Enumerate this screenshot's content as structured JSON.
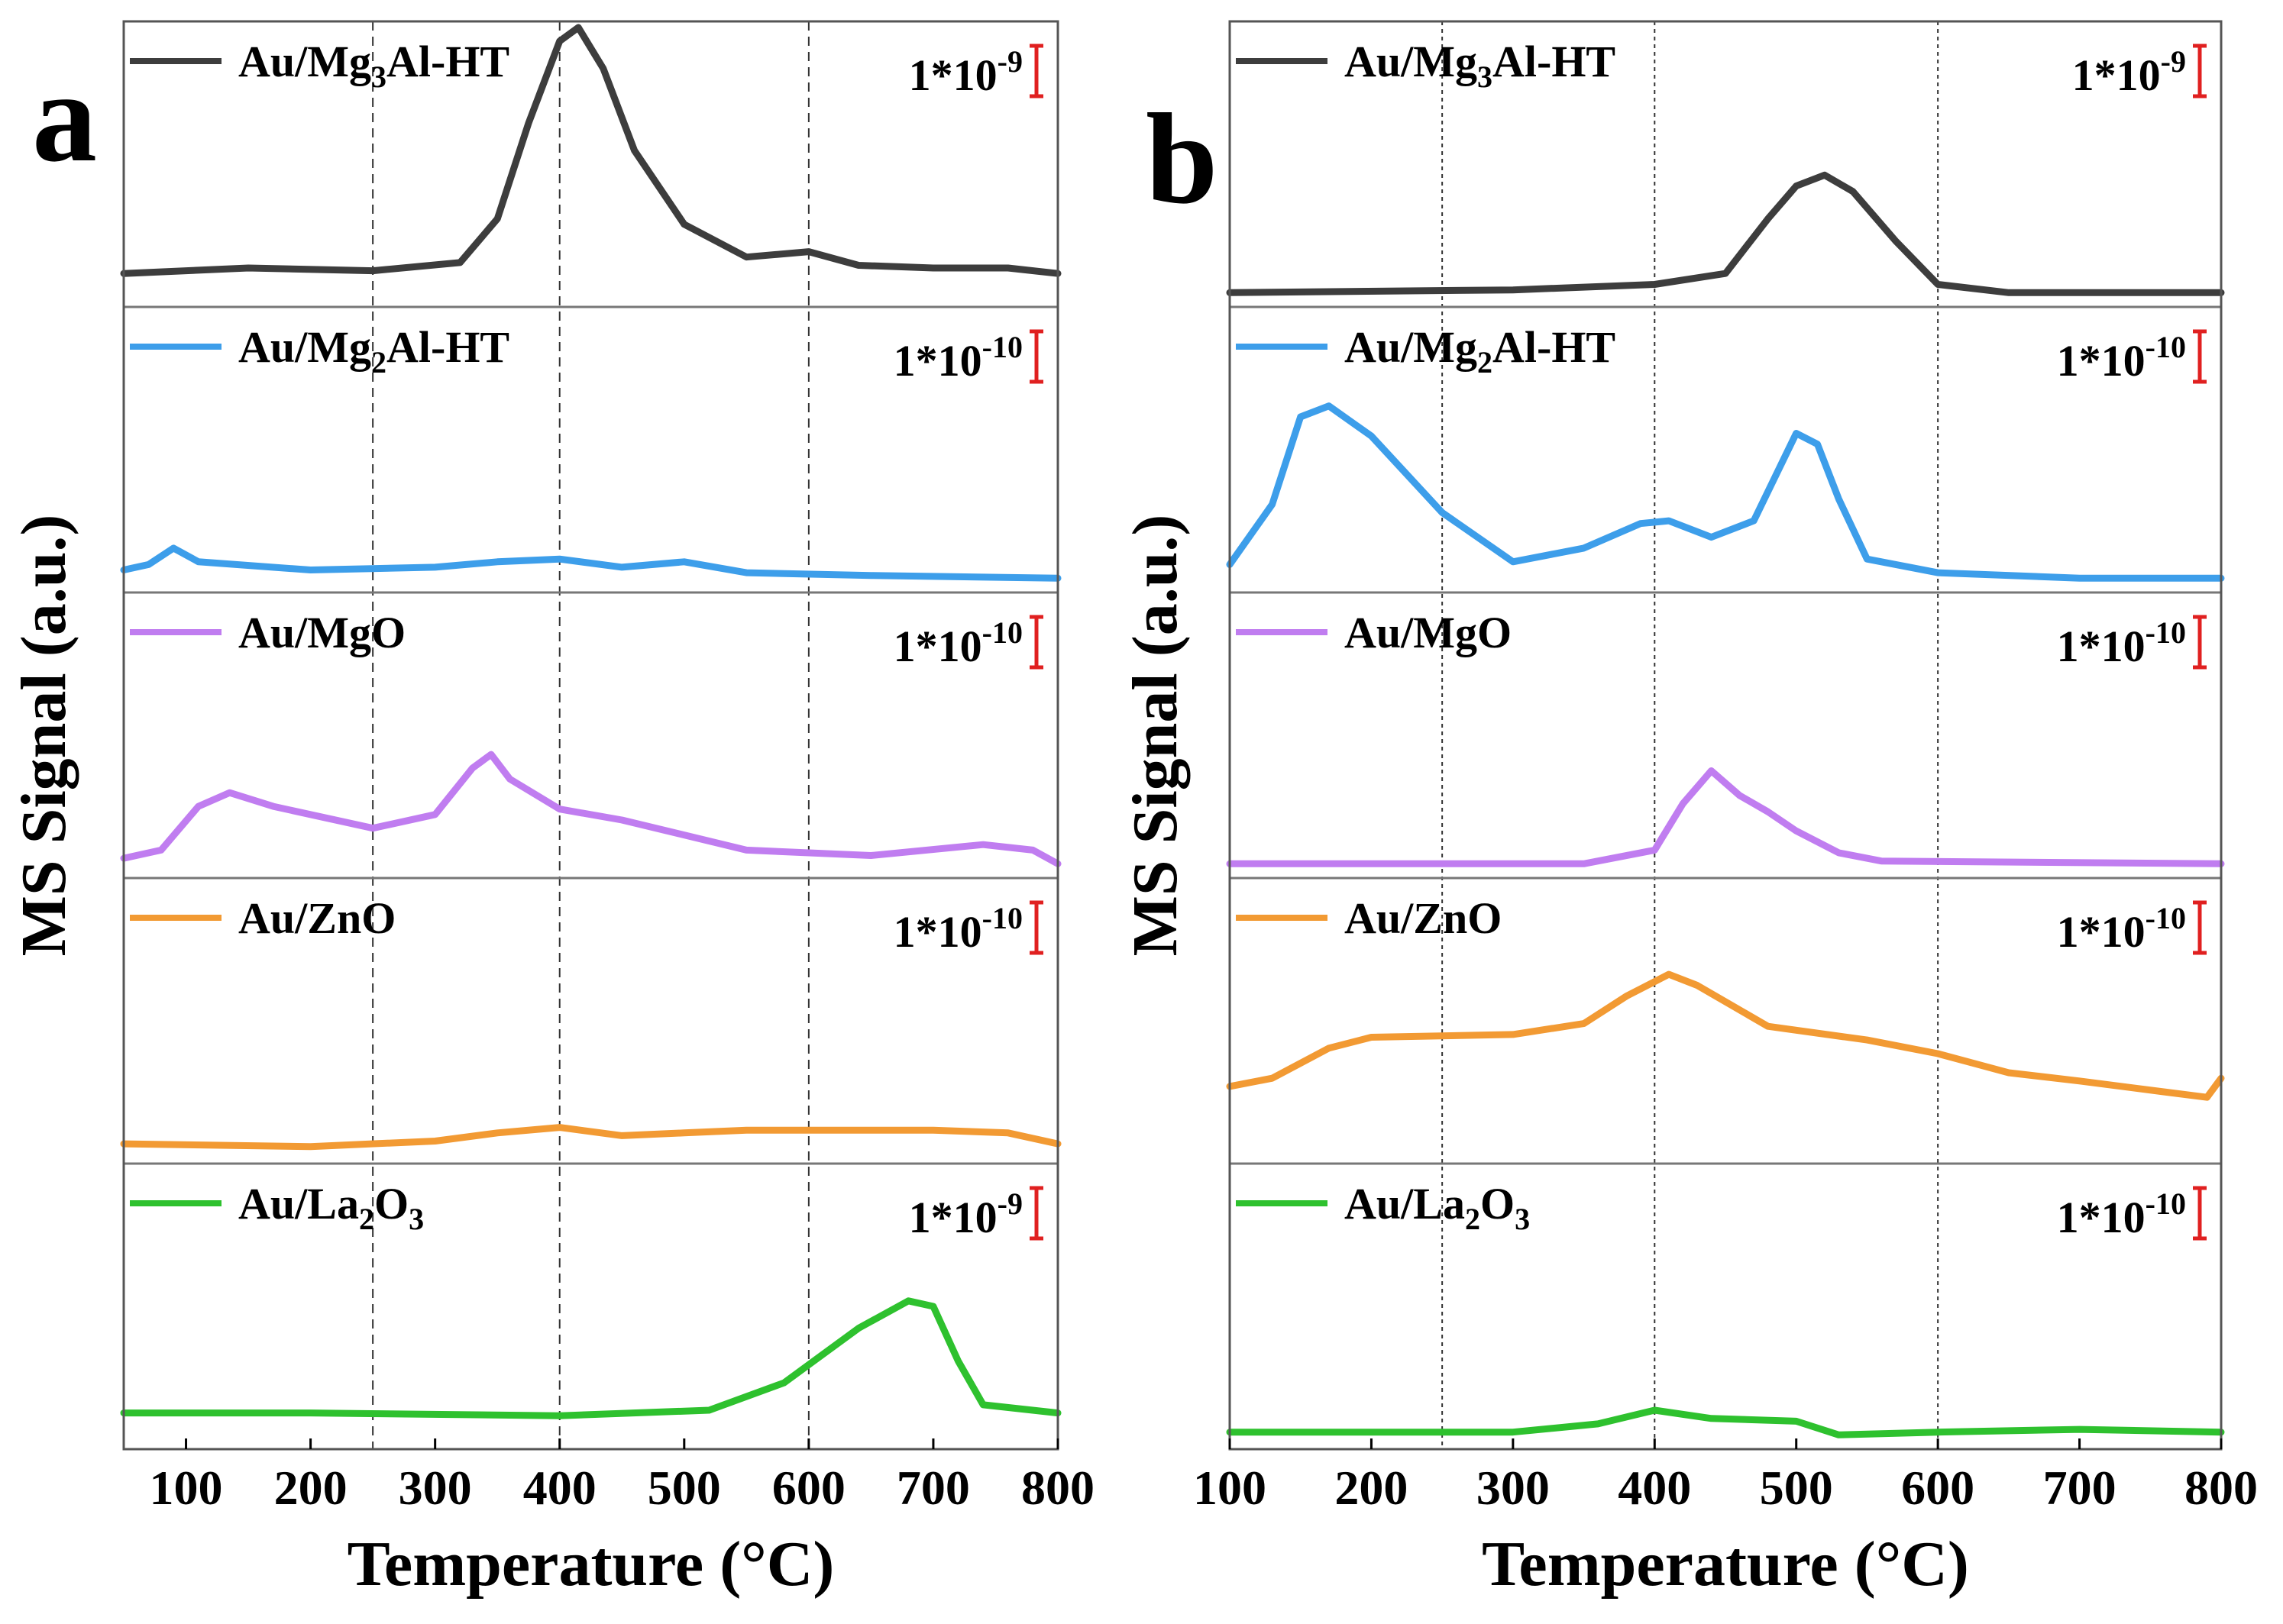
{
  "chart_data": [
    {
      "panel_label": "a",
      "type": "line",
      "xlabel": "Temperature (°C)",
      "ylabel": "MS Signal (a.u.)",
      "xlim": [
        50,
        800
      ],
      "x_ticks": [
        "100",
        "200",
        "300",
        "400",
        "500",
        "600",
        "700",
        "800"
      ],
      "reference_lines_x": [
        250,
        400,
        600
      ],
      "series": [
        {
          "name": "Au/Mg3Al-HT",
          "label_main": "Au/Mg",
          "label_sub1": "3",
          "label_rest": "Al-HT",
          "label_sub2": "",
          "label_tail": "",
          "scale_base": "1*10",
          "scale_exp": "-9",
          "color": "#3d3d3d",
          "points": [
            [
              50,
              0.1
            ],
            [
              150,
              0.12
            ],
            [
              250,
              0.11
            ],
            [
              320,
              0.14
            ],
            [
              350,
              0.3
            ],
            [
              375,
              0.65
            ],
            [
              400,
              0.95
            ],
            [
              415,
              1.0
            ],
            [
              435,
              0.85
            ],
            [
              460,
              0.55
            ],
            [
              500,
              0.28
            ],
            [
              550,
              0.16
            ],
            [
              600,
              0.18
            ],
            [
              640,
              0.13
            ],
            [
              700,
              0.12
            ],
            [
              760,
              0.12
            ],
            [
              800,
              0.1
            ]
          ]
        },
        {
          "name": "Au/Mg2Al-HT",
          "label_main": "Au/Mg",
          "label_sub1": "2",
          "label_rest": "Al-HT",
          "label_sub2": "",
          "label_tail": "",
          "scale_base": "1*10",
          "scale_exp": "-10",
          "color": "#3d9eea",
          "points": [
            [
              50,
              0.06
            ],
            [
              70,
              0.08
            ],
            [
              90,
              0.14
            ],
            [
              110,
              0.09
            ],
            [
              200,
              0.06
            ],
            [
              300,
              0.07
            ],
            [
              350,
              0.09
            ],
            [
              400,
              0.1
            ],
            [
              450,
              0.07
            ],
            [
              500,
              0.09
            ],
            [
              550,
              0.05
            ],
            [
              650,
              0.04
            ],
            [
              800,
              0.03
            ]
          ]
        },
        {
          "name": "Au/MgO",
          "label_main": "Au/MgO",
          "label_sub1": "",
          "label_rest": "",
          "label_sub2": "",
          "label_tail": "",
          "scale_base": "1*10",
          "scale_exp": "-10",
          "color": "#c07df0",
          "points": [
            [
              50,
              0.05
            ],
            [
              80,
              0.08
            ],
            [
              110,
              0.24
            ],
            [
              135,
              0.29
            ],
            [
              170,
              0.24
            ],
            [
              250,
              0.16
            ],
            [
              300,
              0.21
            ],
            [
              330,
              0.38
            ],
            [
              345,
              0.43
            ],
            [
              360,
              0.34
            ],
            [
              400,
              0.23
            ],
            [
              450,
              0.19
            ],
            [
              550,
              0.08
            ],
            [
              650,
              0.06
            ],
            [
              740,
              0.1
            ],
            [
              780,
              0.08
            ],
            [
              800,
              0.03
            ]
          ]
        },
        {
          "name": "Au/ZnO",
          "label_main": "Au/ZnO",
          "label_sub1": "",
          "label_rest": "",
          "label_sub2": "",
          "label_tail": "",
          "scale_base": "1*10",
          "scale_exp": "-10",
          "color": "#f29a33",
          "points": [
            [
              50,
              0.05
            ],
            [
              200,
              0.04
            ],
            [
              300,
              0.06
            ],
            [
              350,
              0.09
            ],
            [
              400,
              0.11
            ],
            [
              450,
              0.08
            ],
            [
              500,
              0.09
            ],
            [
              550,
              0.1
            ],
            [
              600,
              0.1
            ],
            [
              700,
              0.1
            ],
            [
              760,
              0.09
            ],
            [
              800,
              0.05
            ]
          ]
        },
        {
          "name": "Au/La2O3",
          "label_main": "Au/La",
          "label_sub1": "2",
          "label_rest": "O",
          "label_sub2": "3",
          "label_tail": "",
          "scale_base": "1*10",
          "scale_exp": "-9",
          "color": "#2ec12e",
          "points": [
            [
              50,
              0.11
            ],
            [
              200,
              0.11
            ],
            [
              400,
              0.1
            ],
            [
              520,
              0.12
            ],
            [
              580,
              0.22
            ],
            [
              640,
              0.42
            ],
            [
              680,
              0.52
            ],
            [
              700,
              0.5
            ],
            [
              720,
              0.3
            ],
            [
              740,
              0.14
            ],
            [
              800,
              0.11
            ]
          ]
        }
      ]
    },
    {
      "panel_label": "b",
      "type": "line",
      "xlabel": "Temperature (°C)",
      "ylabel": "MS Signal (a.u.)",
      "xlim": [
        100,
        800
      ],
      "x_ticks": [
        "100",
        "200",
        "300",
        "400",
        "500",
        "600",
        "700",
        "800"
      ],
      "reference_lines_x": [
        250,
        400,
        600
      ],
      "series": [
        {
          "name": "Au/Mg3Al-HT",
          "label_main": "Au/Mg",
          "label_sub1": "3",
          "label_rest": "Al-HT",
          "label_sub2": "",
          "label_tail": "",
          "scale_base": "1*10",
          "scale_exp": "-9",
          "color": "#3d3d3d",
          "points": [
            [
              100,
              0.03
            ],
            [
              300,
              0.04
            ],
            [
              400,
              0.06
            ],
            [
              450,
              0.1
            ],
            [
              480,
              0.3
            ],
            [
              500,
              0.42
            ],
            [
              520,
              0.46
            ],
            [
              540,
              0.4
            ],
            [
              570,
              0.22
            ],
            [
              600,
              0.06
            ],
            [
              650,
              0.03
            ],
            [
              800,
              0.03
            ]
          ]
        },
        {
          "name": "Au/Mg2Al-HT",
          "label_main": "Au/Mg",
          "label_sub1": "2",
          "label_rest": "Al-HT",
          "label_sub2": "",
          "label_tail": "",
          "scale_base": "1*10",
          "scale_exp": "-10",
          "color": "#3d9eea",
          "points": [
            [
              100,
              0.08
            ],
            [
              130,
              0.3
            ],
            [
              150,
              0.62
            ],
            [
              170,
              0.66
            ],
            [
              200,
              0.55
            ],
            [
              250,
              0.27
            ],
            [
              300,
              0.09
            ],
            [
              350,
              0.14
            ],
            [
              390,
              0.23
            ],
            [
              410,
              0.24
            ],
            [
              440,
              0.18
            ],
            [
              470,
              0.24
            ],
            [
              500,
              0.56
            ],
            [
              515,
              0.52
            ],
            [
              530,
              0.32
            ],
            [
              550,
              0.1
            ],
            [
              600,
              0.05
            ],
            [
              700,
              0.03
            ],
            [
              800,
              0.03
            ]
          ]
        },
        {
          "name": "Au/MgO",
          "label_main": "Au/MgO",
          "label_sub1": "",
          "label_rest": "",
          "label_sub2": "",
          "label_tail": "",
          "scale_base": "1*10",
          "scale_exp": "-10",
          "color": "#c07df0",
          "points": [
            [
              100,
              0.03
            ],
            [
              350,
              0.03
            ],
            [
              400,
              0.08
            ],
            [
              420,
              0.25
            ],
            [
              440,
              0.37
            ],
            [
              460,
              0.28
            ],
            [
              480,
              0.22
            ],
            [
              500,
              0.15
            ],
            [
              530,
              0.07
            ],
            [
              560,
              0.04
            ],
            [
              800,
              0.03
            ]
          ]
        },
        {
          "name": "Au/ZnO",
          "label_main": "Au/ZnO",
          "label_sub1": "",
          "label_rest": "",
          "label_sub2": "",
          "label_tail": "",
          "scale_base": "1*10",
          "scale_exp": "-10",
          "color": "#f29a33",
          "points": [
            [
              100,
              0.26
            ],
            [
              130,
              0.29
            ],
            [
              170,
              0.4
            ],
            [
              200,
              0.44
            ],
            [
              300,
              0.45
            ],
            [
              350,
              0.49
            ],
            [
              380,
              0.59
            ],
            [
              410,
              0.67
            ],
            [
              430,
              0.63
            ],
            [
              480,
              0.48
            ],
            [
              550,
              0.43
            ],
            [
              600,
              0.38
            ],
            [
              650,
              0.31
            ],
            [
              700,
              0.28
            ],
            [
              760,
              0.24
            ],
            [
              790,
              0.22
            ],
            [
              800,
              0.29
            ]
          ]
        },
        {
          "name": "Au/La2O3",
          "label_main": "Au/La",
          "label_sub1": "2",
          "label_rest": "O",
          "label_sub2": "3",
          "label_tail": "",
          "scale_base": "1*10",
          "scale_exp": "-10",
          "color": "#2ec12e",
          "points": [
            [
              100,
              0.04
            ],
            [
              300,
              0.04
            ],
            [
              360,
              0.07
            ],
            [
              400,
              0.12
            ],
            [
              440,
              0.09
            ],
            [
              500,
              0.08
            ],
            [
              530,
              0.03
            ],
            [
              600,
              0.04
            ],
            [
              700,
              0.05
            ],
            [
              800,
              0.04
            ]
          ]
        }
      ]
    }
  ],
  "scale_bar_color": "#e02020"
}
